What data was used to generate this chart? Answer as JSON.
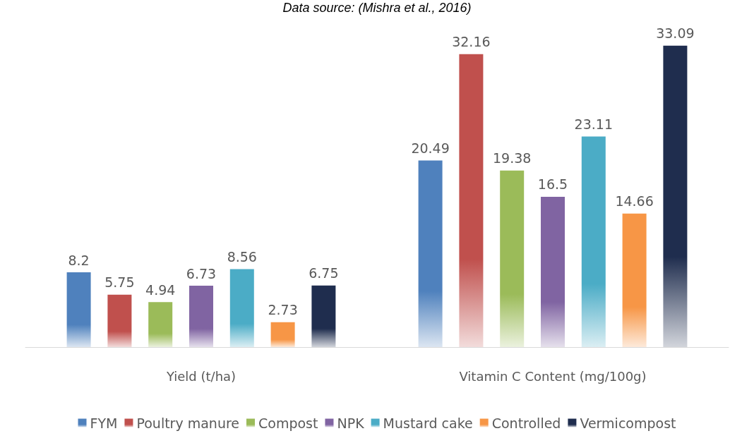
{
  "chart_data": {
    "type": "bar",
    "annotations": [
      "Data source: (Mishra et al., 2016)"
    ],
    "categories": [
      "Yield (t/ha)",
      "Vitamin C Content (mg/100g)"
    ],
    "series": [
      {
        "name": "FYM",
        "color": "#4f81bd",
        "values": [
          8.2,
          20.49
        ]
      },
      {
        "name": "Poultry manure",
        "color": "#c0504d",
        "values": [
          5.75,
          32.16
        ]
      },
      {
        "name": "Compost",
        "color": "#9bbb59",
        "values": [
          4.94,
          19.38
        ]
      },
      {
        "name": "NPK",
        "color": "#8064a2",
        "values": [
          6.73,
          16.5
        ]
      },
      {
        "name": "Mustard cake",
        "color": "#4bacc6",
        "values": [
          8.56,
          23.11
        ]
      },
      {
        "name": "Controlled",
        "color": "#f79646",
        "values": [
          2.73,
          14.66
        ]
      },
      {
        "name": "Vermicompost",
        "color": "#1f2d4e",
        "values": [
          6.75,
          33.09
        ]
      }
    ],
    "data_labels": true,
    "legend": "bottom"
  }
}
